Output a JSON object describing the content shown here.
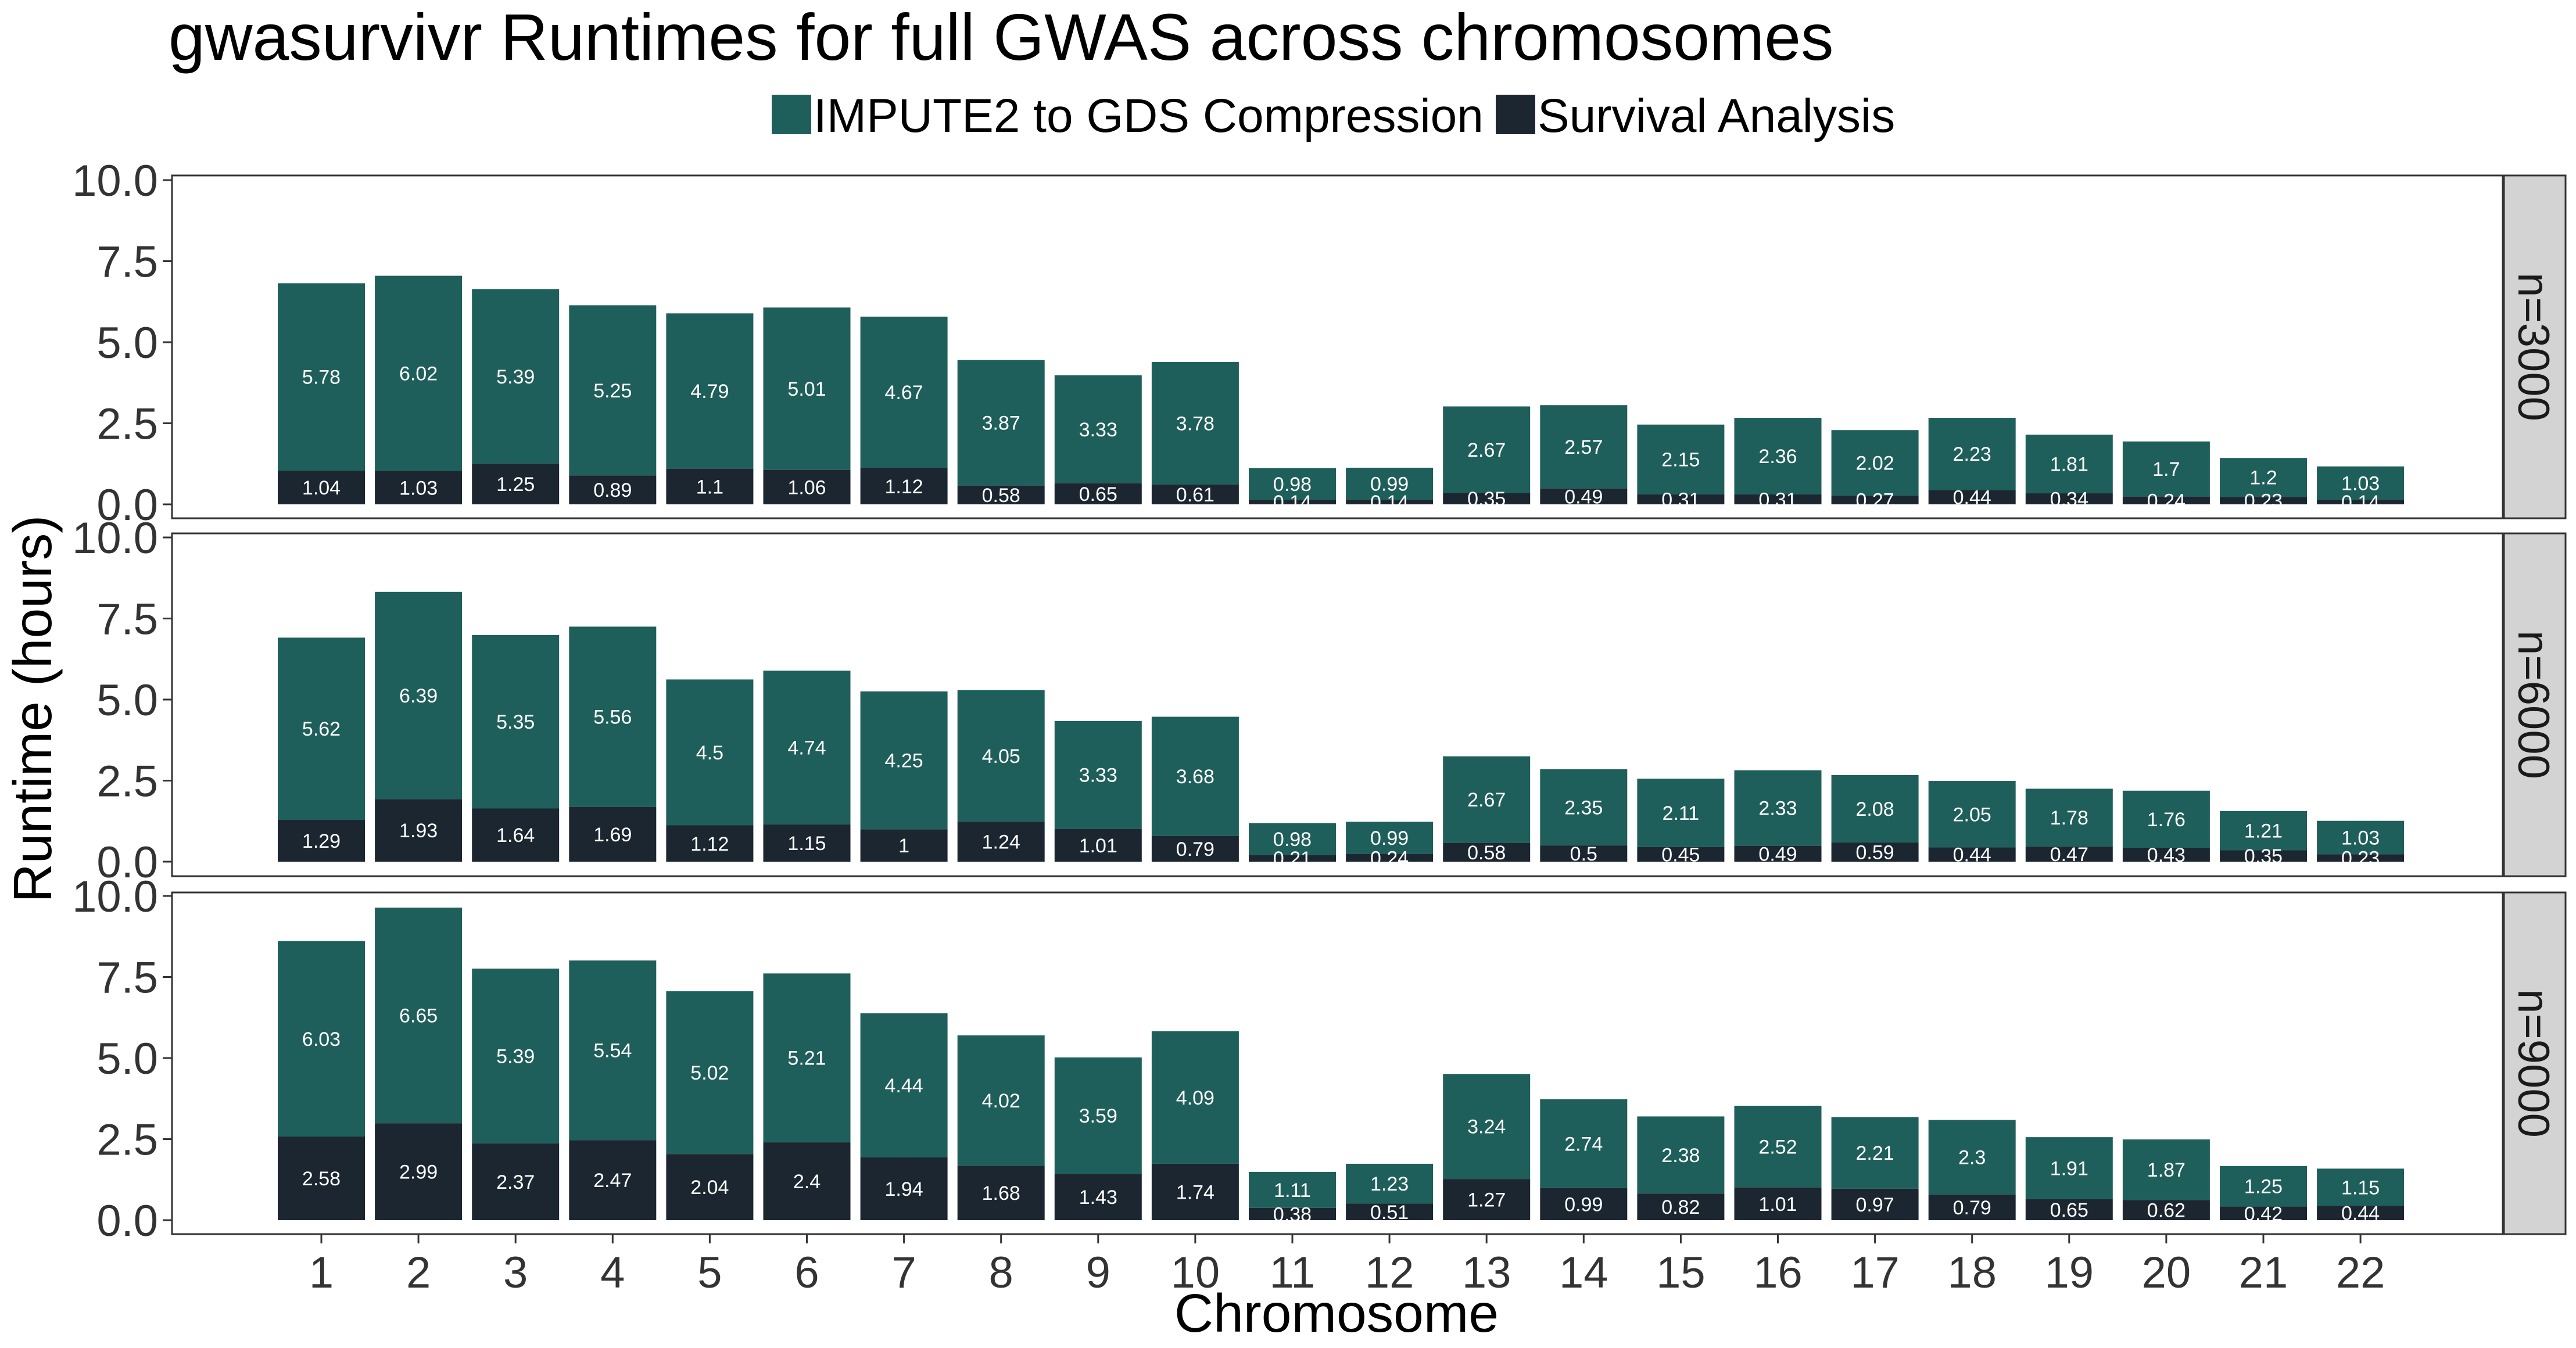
{
  "chart_data": {
    "type": "bar",
    "stacked": true,
    "title": "gwasurvivr Runtimes for full GWAS across chromosomes",
    "xlabel": "Chromosome",
    "ylabel": "Runtime (hours)",
    "ylim": [
      0,
      10
    ],
    "yticks": [
      "0.0",
      "2.5",
      "5.0",
      "7.5",
      "10.0"
    ],
    "legend_position": "top",
    "categories": [
      "1",
      "2",
      "3",
      "4",
      "5",
      "6",
      "7",
      "8",
      "9",
      "10",
      "11",
      "12",
      "13",
      "14",
      "15",
      "16",
      "17",
      "18",
      "19",
      "20",
      "21",
      "22"
    ],
    "series_meta": [
      {
        "name": "IMPUTE2 to GDS Compression",
        "color": "#1f5f5b"
      },
      {
        "name": "Survival Analysis",
        "color": "#1b2631"
      }
    ],
    "panels": [
      {
        "label": "n=3000",
        "compression": [
          5.78,
          6.02,
          5.39,
          5.25,
          4.79,
          5.01,
          4.67,
          3.87,
          3.33,
          3.78,
          0.98,
          0.99,
          2.67,
          2.57,
          2.15,
          2.36,
          2.02,
          2.23,
          1.81,
          1.7,
          1.2,
          1.03
        ],
        "survival": [
          1.04,
          1.03,
          1.25,
          0.89,
          1.1,
          1.06,
          1.12,
          0.58,
          0.65,
          0.61,
          0.14,
          0.14,
          0.35,
          0.49,
          0.31,
          0.31,
          0.27,
          0.44,
          0.34,
          0.24,
          0.23,
          0.14
        ]
      },
      {
        "label": "n=6000",
        "compression": [
          5.62,
          6.39,
          5.35,
          5.56,
          4.5,
          4.74,
          4.25,
          4.05,
          3.33,
          3.68,
          0.98,
          0.99,
          2.67,
          2.35,
          2.11,
          2.33,
          2.08,
          2.05,
          1.78,
          1.76,
          1.21,
          1.03
        ],
        "survival": [
          1.29,
          1.93,
          1.64,
          1.69,
          1.12,
          1.15,
          1,
          1.24,
          1.01,
          0.79,
          0.21,
          0.24,
          0.58,
          0.5,
          0.45,
          0.49,
          0.59,
          0.44,
          0.47,
          0.43,
          0.35,
          0.23
        ]
      },
      {
        "label": "n=9000",
        "compression": [
          6.03,
          6.65,
          5.39,
          5.54,
          5.02,
          5.21,
          4.44,
          4.02,
          3.59,
          4.09,
          1.11,
          1.23,
          3.24,
          2.74,
          2.38,
          2.52,
          2.21,
          2.3,
          1.91,
          1.87,
          1.25,
          1.15
        ],
        "survival": [
          2.58,
          2.99,
          2.37,
          2.47,
          2.04,
          2.4,
          1.94,
          1.68,
          1.43,
          1.74,
          0.38,
          0.51,
          1.27,
          0.99,
          0.82,
          1.01,
          0.97,
          0.79,
          0.65,
          0.62,
          0.42,
          0.44
        ]
      }
    ]
  }
}
